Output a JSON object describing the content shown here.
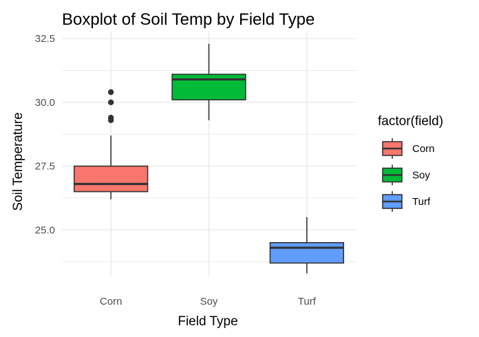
{
  "chart_data": {
    "type": "boxplot",
    "title": "Boxplot of Soil Temp by Field Type",
    "xlabel": "Field Type",
    "ylabel": "Soil Temperature",
    "ylim": [
      23.2,
      32.8
    ],
    "yticks": [
      {
        "value": 25.0,
        "label": "25.0"
      },
      {
        "value": 27.5,
        "label": "27.5"
      },
      {
        "value": 30.0,
        "label": "30.0"
      },
      {
        "value": 32.5,
        "label": "32.5"
      }
    ],
    "grid": true,
    "legend": {
      "title": "factor(field)",
      "position": "right"
    },
    "categories": [
      "Corn",
      "Soy",
      "Turf"
    ],
    "series": [
      {
        "name": "Corn",
        "color": "#F8766D",
        "whisker_low": 26.2,
        "q1": 26.5,
        "median": 26.8,
        "q3": 27.5,
        "whisker_high": 28.7,
        "outliers": [
          29.3,
          29.4,
          30.0,
          30.4
        ]
      },
      {
        "name": "Soy",
        "color": "#00BA38",
        "whisker_low": 29.3,
        "q1": 30.1,
        "median": 30.9,
        "q3": 31.1,
        "whisker_high": 32.3,
        "outliers": []
      },
      {
        "name": "Turf",
        "color": "#619CFF",
        "whisker_low": 23.3,
        "q1": 23.7,
        "median": 24.3,
        "q3": 24.5,
        "whisker_high": 25.5,
        "outliers": []
      }
    ]
  }
}
